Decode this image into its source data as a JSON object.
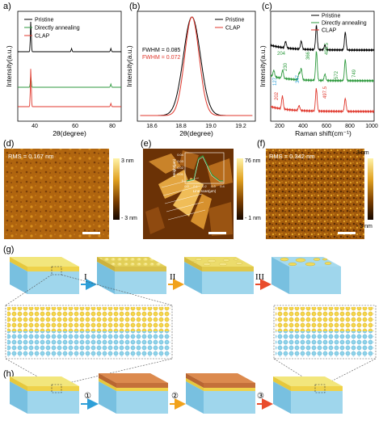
{
  "panels": {
    "a": {
      "label": "a)",
      "xlabel": "2θ(degree)",
      "ylabel": "Intensity(a.u.)",
      "xticks": [
        "40",
        "60",
        "80"
      ],
      "legend": [
        "Pristine",
        "Directly annealing",
        "CLAP"
      ]
    },
    "b": {
      "label": "(b)",
      "xlabel": "2θ(degree)",
      "ylabel": "Intensity(a.u.)",
      "xticks": [
        "18.6",
        "18.8",
        "19.0",
        "19.2"
      ],
      "legend": [
        "Pristine",
        "CLAP"
      ],
      "fwhm_pristine": "FWHM = 0.085",
      "fwhm_clap": "FWHM = 0.072"
    },
    "c": {
      "label": "(c)",
      "xlabel": "Raman shift(cm⁻¹)",
      "ylabel": "Intensity(a.u.)",
      "xticks": [
        "200",
        "400",
        "600",
        "800",
        "1000"
      ],
      "legend": [
        "Pristine",
        "Directly annealing",
        "CLAP"
      ],
      "peaks": [
        "204",
        "230",
        "366",
        "498.5",
        "572",
        "749",
        "127",
        "347",
        "202",
        "497.5"
      ]
    },
    "d": {
      "label": "(d)",
      "rms": "RMS = 0.167 nm",
      "cb_top": "3 nm",
      "cb_bottom": "- 3 nm"
    },
    "e": {
      "label": "(e)",
      "cb_top": "76 nm",
      "cb_bottom": "- 1 nm",
      "inset_ylabel": "Height(μm)",
      "inset_xlabel": "Line scan(μm)",
      "inset_yticks": [
        "0.04",
        "0.03",
        "0.02",
        "0.01",
        "0"
      ],
      "inset_xticks": [
        "0.0",
        "0.1",
        "0.2",
        "0.3",
        "0.4"
      ]
    },
    "f": {
      "label": "(f)",
      "rms": "RMS = 0.342 nm",
      "cb_top": "3 nm",
      "cb_bottom": "- 3 nm"
    },
    "g": {
      "label": "(g)",
      "steps": [
        "I",
        "II",
        "III"
      ]
    },
    "h": {
      "label": "(h)",
      "steps": [
        "①",
        "②",
        "③"
      ]
    }
  },
  "colors": {
    "pristine": "#000000",
    "annealing": "#2e9a3e",
    "clap": "#e0372c",
    "arrow1": "#2e9fd8",
    "arrow2": "#f1a21b",
    "arrow3": "#e94b2b"
  },
  "chart_data": [
    {
      "type": "line",
      "panel": "a",
      "xlim": [
        35,
        85
      ],
      "series": [
        {
          "name": "Pristine",
          "peaks": [
            41.3,
            61,
            80
          ]
        },
        {
          "name": "Directly annealing",
          "peaks": [
            41.3,
            80
          ]
        },
        {
          "name": "CLAP",
          "peaks": [
            41.3,
            80
          ]
        }
      ]
    },
    {
      "type": "line",
      "panel": "b",
      "xlim": [
        18.5,
        19.3
      ],
      "series": [
        {
          "name": "Pristine",
          "center": 18.87,
          "fwhm": 0.085
        },
        {
          "name": "CLAP",
          "center": 18.87,
          "fwhm": 0.072
        }
      ]
    },
    {
      "type": "line",
      "panel": "c",
      "xlim": [
        100,
        1000
      ],
      "series": [
        {
          "name": "Pristine"
        },
        {
          "name": "Directly annealing"
        },
        {
          "name": "CLAP"
        }
      ]
    }
  ]
}
